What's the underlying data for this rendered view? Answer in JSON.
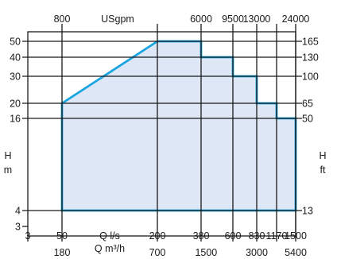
{
  "chart_data": {
    "type": "area",
    "title": "",
    "top_axis": {
      "unit_label": "USgpm",
      "ticks": [
        {
          "label": "800",
          "x": 50
        },
        {
          "label": "6000",
          "x": 380
        },
        {
          "label": "9500",
          "x": 600
        },
        {
          "label": "13000",
          "x": 830
        },
        {
          "label": "24000",
          "x": 1500
        }
      ]
    },
    "bottom_axis_ls": {
      "label": "Q l/s",
      "ticks": [
        {
          "label": "3",
          "x": 3
        },
        {
          "label": "50",
          "x": 50
        },
        {
          "label": "200",
          "x": 200
        },
        {
          "label": "380",
          "x": 380
        },
        {
          "label": "600",
          "x": 600
        },
        {
          "label": "830",
          "x": 830
        },
        {
          "label": "1170",
          "x": 1170
        },
        {
          "label": "1500",
          "x": 1500
        }
      ]
    },
    "bottom_axis_m3h": {
      "label": "Q m³/h",
      "ticks": [
        {
          "label": "180",
          "x": 50
        },
        {
          "label": "700",
          "x": 200
        },
        {
          "label": "1500",
          "x": 415
        },
        {
          "label": "3000",
          "x": 830
        },
        {
          "label": "5400",
          "x": 1500
        }
      ]
    },
    "left_axis": {
      "label_lines": [
        "H",
        "m"
      ],
      "ticks": [
        {
          "label": "50",
          "y": 50
        },
        {
          "label": "40",
          "y": 40
        },
        {
          "label": "30",
          "y": 30
        },
        {
          "label": "20",
          "y": 20
        },
        {
          "label": "16",
          "y": 16
        },
        {
          "label": "4",
          "y": 4
        },
        {
          "label": "3",
          "y": 3
        }
      ]
    },
    "right_axis": {
      "label_lines": [
        "H",
        "ft"
      ],
      "ticks": [
        {
          "label": "165",
          "y": 50
        },
        {
          "label": "130",
          "y": 40
        },
        {
          "label": "100",
          "y": 30
        },
        {
          "label": "65",
          "y": 20
        },
        {
          "label": "50",
          "y": 16
        },
        {
          "label": "13",
          "y": 4
        }
      ]
    },
    "horizontal_gridlines_y": [
      50,
      40,
      30,
      20,
      16,
      4
    ],
    "vertical_gridlines_x": [
      50,
      200,
      380,
      600,
      830,
      1170,
      1500
    ],
    "xlim": [
      3,
      1500
    ],
    "ylim": [
      3,
      50
    ],
    "x_scale": "log",
    "y_scale": "piecewise",
    "envelope": [
      {
        "x": 50,
        "y": 4
      },
      {
        "x": 50,
        "y": 20
      },
      {
        "x": 200,
        "y": 50
      },
      {
        "x": 380,
        "y": 50
      },
      {
        "x": 380,
        "y": 40
      },
      {
        "x": 600,
        "y": 40
      },
      {
        "x": 600,
        "y": 30
      },
      {
        "x": 830,
        "y": 30
      },
      {
        "x": 830,
        "y": 20
      },
      {
        "x": 1170,
        "y": 20
      },
      {
        "x": 1170,
        "y": 16
      },
      {
        "x": 1500,
        "y": 16
      },
      {
        "x": 1500,
        "y": 4
      }
    ],
    "colors": {
      "fill": "#dde7f6",
      "outline": "#1aa5e0",
      "grid": "#1a1a1a"
    }
  }
}
